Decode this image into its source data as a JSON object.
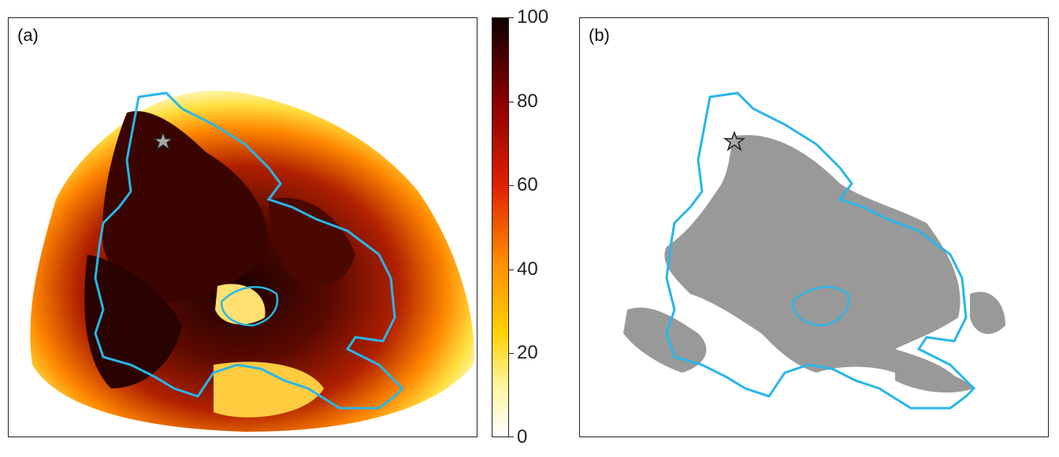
{
  "chart_data": [
    {
      "type": "heatmap",
      "panel_label": "(a)",
      "colormap": "hot (reversed): white → yellow → orange → red → black",
      "colorbar": {
        "range": [
          0,
          100
        ],
        "tick_labels": [
          "0",
          "20",
          "40",
          "60",
          "80",
          "100"
        ],
        "tick_values": [
          0,
          20,
          40,
          60,
          80,
          100
        ]
      },
      "overlay": {
        "boundary_color": "#29b6e8",
        "marker": "star",
        "marker_color": "#a9a9a9"
      },
      "axes_visible": false,
      "grid": false
    },
    {
      "type": "heatmap",
      "panel_label": "(b)",
      "fill_color": "#999999",
      "background": "#ffffff",
      "overlay": {
        "boundary_color": "#29b6e8",
        "marker": "star",
        "marker_color": "#a9a9a9"
      },
      "axes_visible": false,
      "grid": false
    }
  ]
}
